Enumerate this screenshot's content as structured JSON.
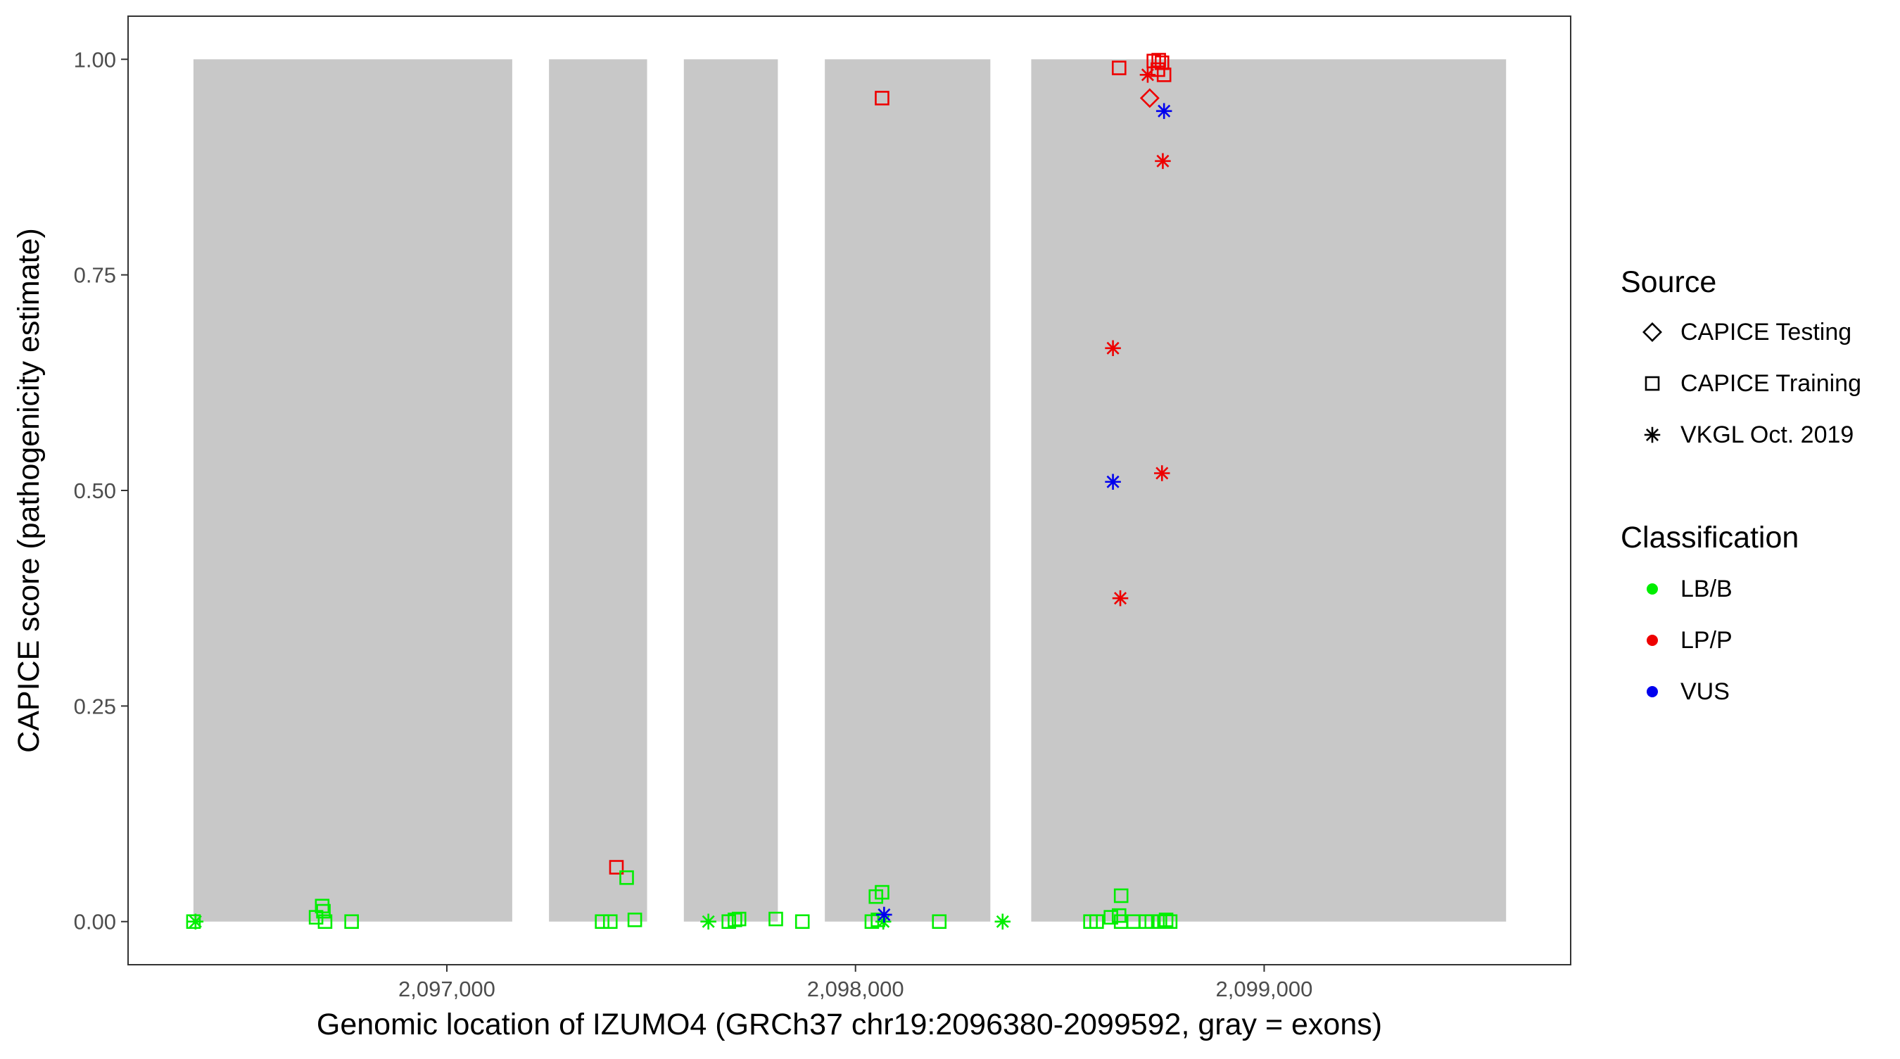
{
  "chart_data": {
    "type": "scatter",
    "title": "",
    "xlabel": "Genomic location of IZUMO4 (GRCh37 chr19:2096380-2099592, gray = exons)",
    "ylabel": "CAPICE score (pathogenicity estimate)",
    "xlim": [
      2096220,
      2099750
    ],
    "ylim": [
      -0.05,
      1.05
    ],
    "x_ticks": [
      2097000,
      2098000,
      2099000
    ],
    "x_tick_labels": [
      "2,097,000",
      "2,098,000",
      "2,099,000"
    ],
    "y_ticks": [
      0,
      0.25,
      0.5,
      0.75,
      1.0
    ],
    "y_tick_labels": [
      "0.00",
      "0.25",
      "0.50",
      "0.75",
      "1.00"
    ],
    "grid": false,
    "legend_position": "right",
    "exons": [
      {
        "start": 2096380,
        "end": 2097160
      },
      {
        "start": 2097250,
        "end": 2097490
      },
      {
        "start": 2097580,
        "end": 2097810
      },
      {
        "start": 2097925,
        "end": 2098330
      },
      {
        "start": 2098430,
        "end": 2099592
      }
    ],
    "legend": {
      "source_title": "Source",
      "source_items": [
        {
          "label": "CAPICE Testing",
          "shape": "diamond"
        },
        {
          "label": "CAPICE Training",
          "shape": "square"
        },
        {
          "label": "VKGL Oct. 2019",
          "shape": "asterisk"
        }
      ],
      "class_title": "Classification",
      "class_items": [
        {
          "label": "LB/B",
          "color": "#00ee00"
        },
        {
          "label": "LP/P",
          "color": "#ee0000"
        },
        {
          "label": "VUS",
          "color": "#0000ee"
        }
      ]
    },
    "colors": {
      "LB/B": "#00ee00",
      "LP/P": "#ee0000",
      "VUS": "#0000ee",
      "exon": "#c8c8c8"
    },
    "points": [
      {
        "x": 2096380,
        "y": 0.0,
        "source": "CAPICE Training",
        "class": "LB/B"
      },
      {
        "x": 2096385,
        "y": 0.0,
        "source": "VKGL Oct. 2019",
        "class": "LB/B"
      },
      {
        "x": 2096680,
        "y": 0.005,
        "source": "CAPICE Training",
        "class": "LB/B"
      },
      {
        "x": 2096695,
        "y": 0.018,
        "source": "CAPICE Training",
        "class": "LB/B"
      },
      {
        "x": 2096698,
        "y": 0.012,
        "source": "CAPICE Training",
        "class": "LB/B"
      },
      {
        "x": 2096702,
        "y": 0.0,
        "source": "CAPICE Training",
        "class": "LB/B"
      },
      {
        "x": 2096767,
        "y": 0.0,
        "source": "CAPICE Training",
        "class": "LB/B"
      },
      {
        "x": 2097415,
        "y": 0.063,
        "source": "CAPICE Training",
        "class": "LP/P"
      },
      {
        "x": 2097440,
        "y": 0.051,
        "source": "CAPICE Training",
        "class": "LB/B"
      },
      {
        "x": 2097380,
        "y": 0.0,
        "source": "CAPICE Training",
        "class": "LB/B"
      },
      {
        "x": 2097400,
        "y": 0.0,
        "source": "CAPICE Training",
        "class": "LB/B"
      },
      {
        "x": 2097460,
        "y": 0.002,
        "source": "CAPICE Training",
        "class": "LB/B"
      },
      {
        "x": 2097640,
        "y": 0.0,
        "source": "VKGL Oct. 2019",
        "class": "LB/B"
      },
      {
        "x": 2097690,
        "y": 0.0,
        "source": "CAPICE Training",
        "class": "LB/B"
      },
      {
        "x": 2097705,
        "y": 0.002,
        "source": "CAPICE Training",
        "class": "LB/B"
      },
      {
        "x": 2097715,
        "y": 0.003,
        "source": "CAPICE Training",
        "class": "LB/B"
      },
      {
        "x": 2097805,
        "y": 0.003,
        "source": "CAPICE Training",
        "class": "LB/B"
      },
      {
        "x": 2097870,
        "y": 0.0,
        "source": "CAPICE Training",
        "class": "LB/B"
      },
      {
        "x": 2098065,
        "y": 0.955,
        "source": "CAPICE Training",
        "class": "LP/P"
      },
      {
        "x": 2098050,
        "y": 0.029,
        "source": "CAPICE Training",
        "class": "LB/B"
      },
      {
        "x": 2098065,
        "y": 0.034,
        "source": "CAPICE Training",
        "class": "LB/B"
      },
      {
        "x": 2098040,
        "y": 0.0,
        "source": "CAPICE Training",
        "class": "LB/B"
      },
      {
        "x": 2098055,
        "y": 0.002,
        "source": "CAPICE Training",
        "class": "LB/B"
      },
      {
        "x": 2098068,
        "y": 0.0,
        "source": "VKGL Oct. 2019",
        "class": "LB/B"
      },
      {
        "x": 2098070,
        "y": 0.008,
        "source": "VKGL Oct. 2019",
        "class": "VUS"
      },
      {
        "x": 2098205,
        "y": 0.0,
        "source": "CAPICE Training",
        "class": "LB/B"
      },
      {
        "x": 2098360,
        "y": 0.0,
        "source": "VKGL Oct. 2019",
        "class": "LB/B"
      },
      {
        "x": 2098575,
        "y": 0.0,
        "source": "CAPICE Training",
        "class": "LB/B"
      },
      {
        "x": 2098590,
        "y": 0.0,
        "source": "CAPICE Training",
        "class": "LB/B"
      },
      {
        "x": 2098625,
        "y": 0.005,
        "source": "CAPICE Training",
        "class": "LB/B"
      },
      {
        "x": 2098650,
        "y": 0.03,
        "source": "CAPICE Training",
        "class": "LB/B"
      },
      {
        "x": 2098645,
        "y": 0.007,
        "source": "CAPICE Training",
        "class": "LB/B"
      },
      {
        "x": 2098650,
        "y": 0.0,
        "source": "CAPICE Training",
        "class": "LB/B"
      },
      {
        "x": 2098680,
        "y": 0.0,
        "source": "CAPICE Training",
        "class": "LB/B"
      },
      {
        "x": 2098710,
        "y": 0.0,
        "source": "CAPICE Training",
        "class": "LB/B"
      },
      {
        "x": 2098725,
        "y": 0.0,
        "source": "CAPICE Training",
        "class": "LB/B"
      },
      {
        "x": 2098745,
        "y": 0.0,
        "source": "CAPICE Training",
        "class": "LB/B"
      },
      {
        "x": 2098760,
        "y": 0.002,
        "source": "CAPICE Training",
        "class": "LB/B"
      },
      {
        "x": 2098770,
        "y": 0.0,
        "source": "CAPICE Training",
        "class": "LB/B"
      },
      {
        "x": 2098645,
        "y": 0.99,
        "source": "CAPICE Training",
        "class": "LP/P"
      },
      {
        "x": 2098730,
        "y": 0.998,
        "source": "CAPICE Training",
        "class": "LP/P"
      },
      {
        "x": 2098742,
        "y": 0.999,
        "source": "CAPICE Training",
        "class": "LP/P"
      },
      {
        "x": 2098750,
        "y": 0.996,
        "source": "CAPICE Training",
        "class": "LP/P"
      },
      {
        "x": 2098740,
        "y": 0.988,
        "source": "CAPICE Training",
        "class": "LP/P"
      },
      {
        "x": 2098755,
        "y": 0.982,
        "source": "CAPICE Training",
        "class": "LP/P"
      },
      {
        "x": 2098715,
        "y": 0.982,
        "source": "VKGL Oct. 2019",
        "class": "LP/P"
      },
      {
        "x": 2098720,
        "y": 0.955,
        "source": "CAPICE Testing",
        "class": "LP/P"
      },
      {
        "x": 2098755,
        "y": 0.94,
        "source": "VKGL Oct. 2019",
        "class": "VUS"
      },
      {
        "x": 2098752,
        "y": 0.882,
        "source": "VKGL Oct. 2019",
        "class": "LP/P"
      },
      {
        "x": 2098630,
        "y": 0.665,
        "source": "VKGL Oct. 2019",
        "class": "LP/P"
      },
      {
        "x": 2098750,
        "y": 0.52,
        "source": "VKGL Oct. 2019",
        "class": "LP/P"
      },
      {
        "x": 2098630,
        "y": 0.51,
        "source": "VKGL Oct. 2019",
        "class": "VUS"
      },
      {
        "x": 2098648,
        "y": 0.375,
        "source": "VKGL Oct. 2019",
        "class": "LP/P"
      }
    ]
  }
}
